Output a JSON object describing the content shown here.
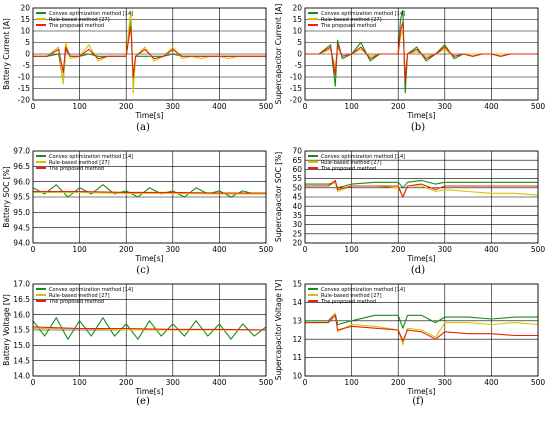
{
  "figure": {
    "legend_labels": [
      "Convex optimization method [14]",
      "Rule-based method [27]",
      "The proposed method"
    ],
    "colors": {
      "convex": "#1a8a1a",
      "rule": "#d4c400",
      "proposed": "#e8200c"
    }
  },
  "chart_data": [
    {
      "panel": "a",
      "caption": "(a)",
      "type": "line",
      "xlabel": "Time[s]",
      "ylabel": "Battery Current [A]",
      "xlim": [
        0,
        500
      ],
      "ylim": [
        -20,
        20
      ],
      "xticks": [
        0,
        100,
        200,
        300,
        400,
        500
      ],
      "yticks": [
        -20,
        -15,
        -10,
        -5,
        0,
        5,
        10,
        15,
        20
      ],
      "ytick_labels": [
        "-20",
        "-15",
        "-10",
        "-5",
        "0",
        "5",
        "10",
        "15",
        "20"
      ],
      "grid": true,
      "legend": "top-left",
      "series": [
        {
          "name": "Convex optimization method [14]",
          "color": "#1a8a1a",
          "x": [
            0,
            30,
            55,
            65,
            70,
            80,
            100,
            120,
            140,
            160,
            180,
            200,
            205,
            210,
            215,
            220,
            240,
            260,
            280,
            300,
            320,
            340,
            360,
            380,
            400,
            420,
            440,
            460,
            480,
            500
          ],
          "y": [
            -1,
            -1,
            0,
            -12,
            2,
            -1,
            -1,
            0,
            -1,
            -1,
            -1,
            -1,
            8,
            16,
            -15,
            -1,
            -1,
            -1,
            -1,
            0,
            -1,
            -1,
            -1,
            -1,
            -1,
            -1,
            -1,
            -1,
            -1,
            -1
          ]
        },
        {
          "name": "Rule-based method [27]",
          "color": "#d4c400",
          "x": [
            0,
            30,
            55,
            65,
            70,
            80,
            100,
            120,
            140,
            160,
            180,
            200,
            205,
            210,
            215,
            220,
            240,
            260,
            280,
            300,
            320,
            340,
            360,
            380,
            400,
            420,
            440,
            460,
            480,
            500
          ],
          "y": [
            -1,
            -1,
            3,
            -13,
            5,
            -2,
            -1,
            4,
            -3,
            -1,
            -1,
            -1,
            10,
            18,
            -17,
            -1,
            3,
            -3,
            -1,
            3,
            -2,
            -1,
            -2,
            -1,
            -1,
            -2,
            -1,
            -1,
            -1,
            -1
          ]
        },
        {
          "name": "The proposed method",
          "color": "#e8200c",
          "x": [
            0,
            30,
            55,
            65,
            70,
            80,
            100,
            120,
            140,
            160,
            180,
            200,
            205,
            210,
            215,
            220,
            240,
            260,
            280,
            300,
            320,
            340,
            360,
            380,
            400,
            420,
            440,
            460,
            480,
            500
          ],
          "y": [
            -1,
            -1,
            2,
            -8,
            3,
            -1,
            -1,
            2,
            -2,
            -1,
            -1,
            -1,
            6,
            12,
            -10,
            -1,
            2,
            -2,
            -1,
            2,
            -1,
            -1,
            -1,
            -1,
            -1,
            -1,
            -1,
            -1,
            -1,
            -1
          ]
        }
      ]
    },
    {
      "panel": "b",
      "caption": "(b)",
      "type": "line",
      "xlabel": "Time[s]",
      "ylabel": "Supercapacitor Current [A]",
      "xlim": [
        0,
        500
      ],
      "ylim": [
        -20,
        20
      ],
      "xticks": [
        0,
        100,
        200,
        300,
        400,
        500
      ],
      "yticks": [
        -20,
        -15,
        -10,
        -5,
        0,
        5,
        10,
        15,
        20
      ],
      "ytick_labels": [
        "-20",
        "-15",
        "-10",
        "-5",
        "0",
        "5",
        "10",
        "15",
        "20"
      ],
      "grid": true,
      "legend": "top-left",
      "series": [
        {
          "name": "Convex optimization method [14]",
          "color": "#1a8a1a",
          "x": [
            0,
            30,
            55,
            65,
            70,
            80,
            100,
            120,
            140,
            160,
            180,
            200,
            205,
            210,
            215,
            220,
            240,
            260,
            280,
            300,
            320,
            340,
            360,
            380,
            400,
            420,
            440,
            460,
            480,
            500
          ],
          "y": [
            0,
            0,
            4,
            -14,
            6,
            -2,
            0,
            5,
            -3,
            0,
            0,
            0,
            15,
            19,
            -17,
            0,
            3,
            -3,
            0,
            4,
            -2,
            0,
            -1,
            0,
            0,
            -1,
            0,
            0,
            0,
            0
          ]
        },
        {
          "name": "Rule-based method [27]",
          "color": "#d4c400",
          "x": [
            0,
            30,
            55,
            65,
            70,
            80,
            100,
            120,
            140,
            160,
            180,
            200,
            205,
            210,
            215,
            220,
            240,
            260,
            280,
            300,
            320,
            340,
            360,
            380,
            400,
            420,
            440,
            460,
            480,
            500
          ],
          "y": [
            0,
            0,
            2,
            -6,
            3,
            -1,
            0,
            2,
            -1,
            0,
            0,
            0,
            8,
            10,
            -8,
            0,
            1,
            -1,
            0,
            2,
            -1,
            0,
            0,
            0,
            0,
            0,
            0,
            0,
            0,
            0
          ]
        },
        {
          "name": "The proposed method",
          "color": "#e8200c",
          "x": [
            0,
            30,
            55,
            65,
            70,
            80,
            100,
            120,
            140,
            160,
            180,
            200,
            205,
            210,
            215,
            220,
            240,
            260,
            280,
            300,
            320,
            340,
            360,
            380,
            400,
            420,
            440,
            460,
            480,
            500
          ],
          "y": [
            0,
            0,
            3,
            -9,
            4,
            -1,
            0,
            3,
            -2,
            0,
            0,
            0,
            10,
            14,
            -12,
            0,
            2,
            -2,
            0,
            3,
            -1,
            0,
            -1,
            0,
            0,
            -1,
            0,
            0,
            0,
            0
          ]
        }
      ]
    },
    {
      "panel": "c",
      "caption": "(c)",
      "type": "line",
      "xlabel": "Time[s]",
      "ylabel": "Battery SOC [%]",
      "xlim": [
        0,
        500
      ],
      "ylim": [
        94,
        97
      ],
      "xticks": [
        0,
        100,
        200,
        300,
        400,
        500
      ],
      "yticks": [
        94,
        94.5,
        95,
        95.5,
        96,
        96.5,
        97
      ],
      "ytick_labels": [
        "94.0",
        "94.5",
        "95.0",
        "95.5",
        "96.0",
        "96.5",
        "97.0"
      ],
      "grid": true,
      "legend": "top-left",
      "series": [
        {
          "name": "Convex optimization method [14]",
          "color": "#1a8a1a",
          "x": [
            0,
            25,
            50,
            75,
            100,
            125,
            150,
            175,
            200,
            225,
            250,
            275,
            300,
            325,
            350,
            375,
            400,
            425,
            450,
            475,
            500
          ],
          "y": [
            95.8,
            95.6,
            95.9,
            95.5,
            95.8,
            95.6,
            95.9,
            95.6,
            95.7,
            95.5,
            95.8,
            95.6,
            95.7,
            95.5,
            95.8,
            95.6,
            95.7,
            95.5,
            95.7,
            95.6,
            95.6
          ]
        },
        {
          "name": "Rule-based method [27]",
          "color": "#d4c400",
          "x": [
            0,
            100,
            200,
            300,
            400,
            500
          ],
          "y": [
            95.65,
            95.65,
            95.62,
            95.62,
            95.6,
            95.6
          ]
        },
        {
          "name": "The proposed method",
          "color": "#e8200c",
          "x": [
            0,
            100,
            200,
            300,
            400,
            500
          ],
          "y": [
            95.68,
            95.68,
            95.65,
            95.65,
            95.63,
            95.63
          ]
        }
      ]
    },
    {
      "panel": "d",
      "caption": "(d)",
      "type": "line",
      "xlabel": "Time[s]",
      "ylabel": "Supercapacitor SOC [%]",
      "xlim": [
        0,
        500
      ],
      "ylim": [
        20,
        70
      ],
      "xticks": [
        0,
        100,
        200,
        300,
        400,
        500
      ],
      "yticks": [
        20,
        25,
        30,
        35,
        40,
        45,
        50,
        55,
        60,
        65,
        70
      ],
      "ytick_labels": [
        "20",
        "25",
        "30",
        "35",
        "40",
        "45",
        "50",
        "55",
        "60",
        "65",
        "70"
      ],
      "grid": true,
      "legend": "top-left",
      "series": [
        {
          "name": "Convex optimization method [14]",
          "color": "#1a8a1a",
          "x": [
            0,
            50,
            65,
            70,
            100,
            150,
            200,
            210,
            220,
            250,
            280,
            300,
            350,
            400,
            450,
            500
          ],
          "y": [
            52,
            52,
            53,
            50,
            52,
            53,
            53,
            50,
            53,
            54,
            52,
            53,
            53,
            53,
            53,
            53
          ]
        },
        {
          "name": "Rule-based method [27]",
          "color": "#d4c400",
          "x": [
            0,
            50,
            65,
            70,
            100,
            150,
            200,
            210,
            220,
            250,
            280,
            300,
            350,
            400,
            450,
            500
          ],
          "y": [
            51,
            51,
            53,
            48,
            51,
            51,
            50,
            45,
            51,
            51,
            48,
            49,
            48,
            47,
            47,
            46
          ]
        },
        {
          "name": "The proposed method",
          "color": "#e8200c",
          "x": [
            0,
            50,
            65,
            70,
            100,
            150,
            200,
            210,
            220,
            250,
            280,
            300,
            350,
            400,
            450,
            500
          ],
          "y": [
            51,
            51,
            54,
            49,
            51,
            51,
            51,
            45,
            51,
            52,
            49,
            51,
            51,
            51,
            51,
            51
          ]
        }
      ]
    },
    {
      "panel": "e",
      "caption": "(e)",
      "type": "line",
      "xlabel": "Time[s]",
      "ylabel": "Battery Voltage [V]",
      "xlim": [
        0,
        500
      ],
      "ylim": [
        14,
        17
      ],
      "xticks": [
        0,
        100,
        200,
        300,
        400,
        500
      ],
      "yticks": [
        14,
        14.5,
        15,
        15.5,
        16,
        16.5,
        17
      ],
      "ytick_labels": [
        "14.0",
        "14.5",
        "15.0",
        "15.5",
        "16.0",
        "16.5",
        "17.0"
      ],
      "grid": true,
      "legend": "top-left",
      "series": [
        {
          "name": "Convex optimization method [14]",
          "color": "#1a8a1a",
          "x": [
            0,
            25,
            50,
            75,
            100,
            125,
            150,
            175,
            200,
            225,
            250,
            275,
            300,
            325,
            350,
            375,
            400,
            425,
            450,
            475,
            500
          ],
          "y": [
            15.8,
            15.3,
            15.9,
            15.2,
            15.8,
            15.3,
            15.9,
            15.3,
            15.7,
            15.2,
            15.8,
            15.3,
            15.7,
            15.3,
            15.8,
            15.3,
            15.7,
            15.2,
            15.7,
            15.3,
            15.6
          ]
        },
        {
          "name": "Rule-based method [27]",
          "color": "#d4c400",
          "x": [
            0,
            100,
            200,
            300,
            400,
            500
          ],
          "y": [
            15.55,
            15.55,
            15.5,
            15.5,
            15.5,
            15.5
          ]
        },
        {
          "name": "The proposed method",
          "color": "#e8200c",
          "x": [
            0,
            100,
            200,
            300,
            400,
            500
          ],
          "y": [
            15.6,
            15.55,
            15.55,
            15.52,
            15.52,
            15.5
          ]
        }
      ]
    },
    {
      "panel": "f",
      "caption": "(f)",
      "type": "line",
      "xlabel": "Time[s]",
      "ylabel": "Supercapacitor Voltage [V]",
      "xlim": [
        0,
        500
      ],
      "ylim": [
        10,
        15
      ],
      "xticks": [
        0,
        100,
        200,
        300,
        400,
        500
      ],
      "yticks": [
        10,
        11,
        12,
        13,
        14,
        15
      ],
      "ytick_labels": [
        "10",
        "11",
        "12",
        "13",
        "14",
        "15"
      ],
      "grid": true,
      "legend": "top-left",
      "series": [
        {
          "name": "Convex optimization method [14]",
          "color": "#1a8a1a",
          "x": [
            0,
            50,
            65,
            70,
            100,
            150,
            200,
            210,
            220,
            250,
            280,
            300,
            350,
            400,
            450,
            500
          ],
          "y": [
            13.0,
            13.0,
            13.4,
            12.8,
            13.0,
            13.3,
            13.3,
            12.6,
            13.3,
            13.3,
            12.9,
            13.2,
            13.2,
            13.1,
            13.2,
            13.2
          ]
        },
        {
          "name": "Rule-based method [27]",
          "color": "#d4c400",
          "x": [
            0,
            50,
            65,
            70,
            100,
            150,
            200,
            210,
            220,
            250,
            280,
            300,
            350,
            400,
            450,
            500
          ],
          "y": [
            12.9,
            12.9,
            13.4,
            12.4,
            12.8,
            12.7,
            12.5,
            11.7,
            12.6,
            12.5,
            12.1,
            12.9,
            12.9,
            12.8,
            12.9,
            12.8
          ]
        },
        {
          "name": "The proposed method",
          "color": "#e8200c",
          "x": [
            0,
            50,
            65,
            70,
            100,
            150,
            200,
            210,
            220,
            250,
            280,
            300,
            350,
            400,
            450,
            500
          ],
          "y": [
            12.9,
            12.9,
            13.3,
            12.5,
            12.7,
            12.6,
            12.5,
            11.9,
            12.5,
            12.4,
            12.0,
            12.4,
            12.3,
            12.3,
            12.2,
            12.2
          ]
        }
      ]
    }
  ]
}
